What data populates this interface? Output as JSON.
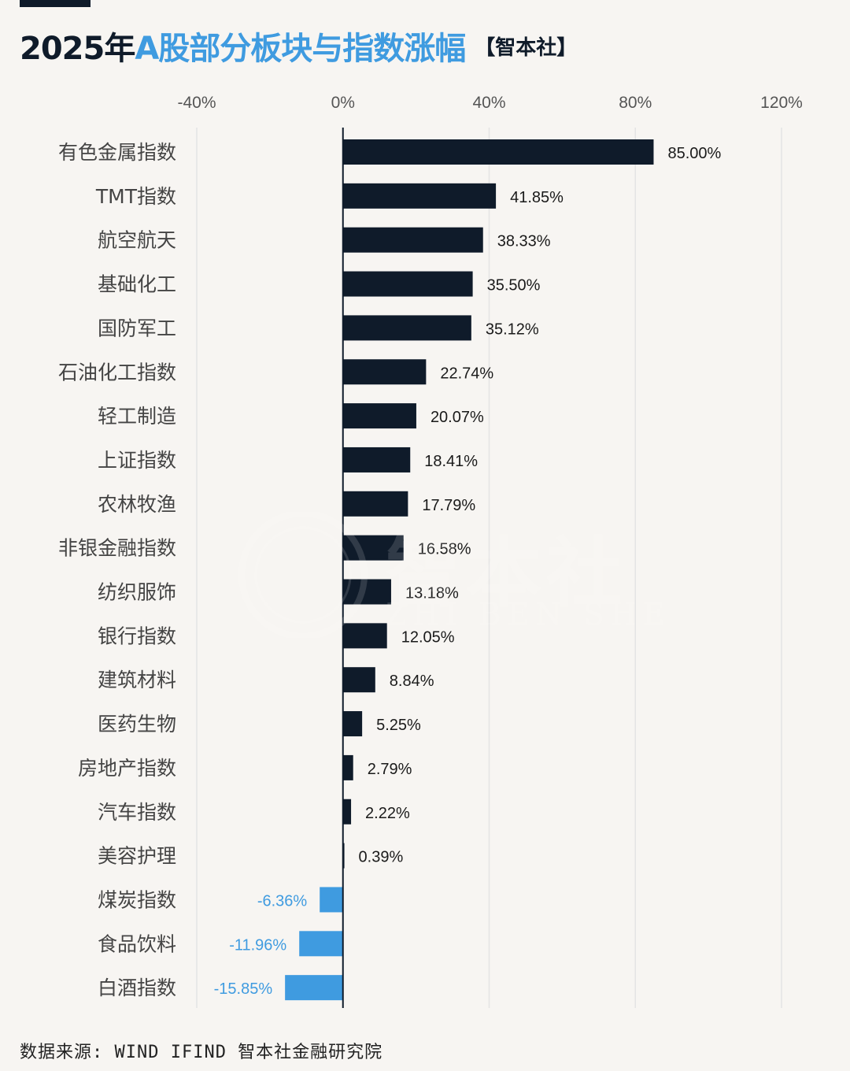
{
  "header": {
    "title_year": "2025年",
    "title_main": "A股部分板块与指数涨幅",
    "title_brand": "【智本社】"
  },
  "watermark": {
    "text": "智本社",
    "subtext": "ZHI BEN SHE"
  },
  "source": "数据来源: WIND IFIND 智本社金融研究院",
  "colors": {
    "positive": "#0f1b2a",
    "negative": "#3f9be0",
    "title_dark": "#0f1b2a",
    "title_blue": "#3f9be0",
    "grid": "#e4e4e4",
    "zero_axis": "#0f1b2a"
  },
  "chart_data": {
    "type": "bar",
    "orientation": "horizontal",
    "title": "2025年A股部分板块与指数涨幅",
    "xlim": [
      -40,
      120
    ],
    "x_ticks": [
      "-40%",
      "0%",
      "40%",
      "80%",
      "120%"
    ],
    "x_tick_values": [
      -40,
      0,
      40,
      80,
      120
    ],
    "grid": true,
    "categories": [
      "有色金属指数",
      "TMT指数",
      "航空航天",
      "基础化工",
      "国防军工",
      "石油化工指数",
      "轻工制造",
      "上证指数",
      "农林牧渔",
      "非银金融指数",
      "纺织服饰",
      "银行指数",
      "建筑材料",
      "医药生物",
      "房地产指数",
      "汽车指数",
      "美容护理",
      "煤炭指数",
      "食品饮料",
      "白酒指数"
    ],
    "values": [
      85.0,
      41.85,
      38.33,
      35.5,
      35.12,
      22.74,
      20.07,
      18.41,
      17.79,
      16.58,
      13.18,
      12.05,
      8.84,
      5.25,
      2.79,
      2.22,
      0.39,
      -6.36,
      -11.96,
      -15.85
    ],
    "value_labels": [
      "85.00%",
      "41.85%",
      "38.33%",
      "35.50%",
      "35.12%",
      "22.74%",
      "20.07%",
      "18.41%",
      "17.79%",
      "16.58%",
      "13.18%",
      "12.05%",
      "8.84%",
      "5.25%",
      "2.79%",
      "2.22%",
      "0.39%",
      "-6.36%",
      "-11.96%",
      "-15.85%"
    ]
  }
}
